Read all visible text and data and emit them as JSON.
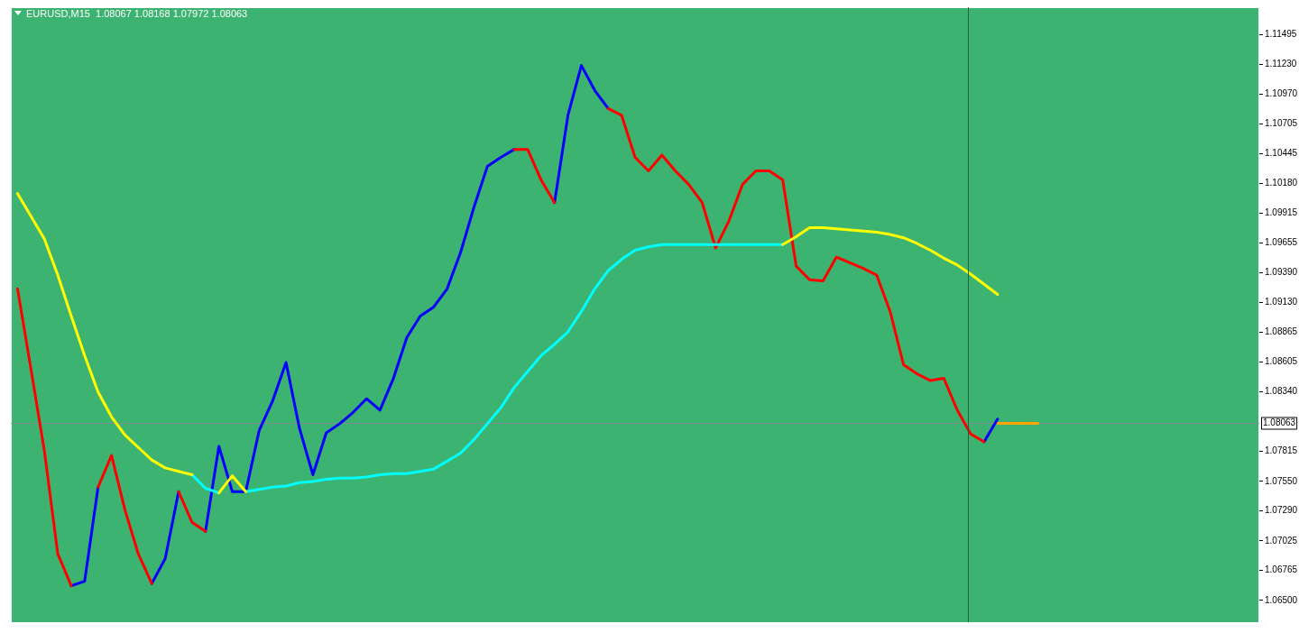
{
  "chart_data": {
    "type": "line",
    "title": "EURUSD,M15  1.08067 1.08168 1.07972 1.08063",
    "categories": [
      null,
      null,
      null,
      null,
      null,
      null,
      null,
      null,
      null,
      null,
      null,
      null,
      null,
      null,
      null,
      null,
      null,
      null,
      null,
      null,
      null,
      null,
      null,
      null,
      null,
      null,
      null,
      null,
      null,
      null,
      null,
      null,
      null,
      null,
      null,
      null,
      null,
      null,
      null,
      null,
      null,
      null,
      null,
      null,
      null,
      null,
      null,
      null,
      null,
      null,
      null,
      null,
      null,
      null,
      null,
      null,
      null,
      null,
      null,
      null,
      null,
      null,
      null,
      null,
      null,
      null,
      null,
      null,
      null,
      null,
      null,
      null,
      null,
      null,
      null,
      null,
      null,
      null,
      null,
      null,
      null,
      null,
      null,
      null,
      null,
      null,
      null,
      null,
      null,
      null,
      null,
      null,
      null
    ],
    "ylim": [
      1.06309,
      1.11734
    ],
    "tick_labels": "y",
    "grid": false,
    "legend": false,
    "marker": "none",
    "line_style": "solid",
    "yticks": [
      {
        "value": 1.11495,
        "label": "1.11495"
      },
      {
        "value": 1.1123,
        "label": "1.11230"
      },
      {
        "value": 1.1097,
        "label": "1.10970"
      },
      {
        "value": 1.10705,
        "label": "1.10705"
      },
      {
        "value": 1.10445,
        "label": "1.10445"
      },
      {
        "value": 1.1018,
        "label": "1.10180"
      },
      {
        "value": 1.09915,
        "label": "1.09915"
      },
      {
        "value": 1.09655,
        "label": "1.09655"
      },
      {
        "value": 1.0939,
        "label": "1.09390"
      },
      {
        "value": 1.0913,
        "label": "1.09130"
      },
      {
        "value": 1.08865,
        "label": "1.08865"
      },
      {
        "value": 1.08605,
        "label": "1.08605"
      },
      {
        "value": 1.0834,
        "label": "1.08340"
      },
      {
        "value": 1.07815,
        "label": "1.07815"
      },
      {
        "value": 1.0755,
        "label": "1.07550"
      },
      {
        "value": 1.0729,
        "label": "1.07290"
      },
      {
        "value": 1.07025,
        "label": "1.07025"
      },
      {
        "value": 1.06765,
        "label": "1.06765"
      },
      {
        "value": 1.065,
        "label": "1.06500"
      }
    ],
    "ref_lines": [
      {
        "axis": "y",
        "value": 1.08063,
        "label": "1.08063",
        "color": "#7f8f8f"
      }
    ],
    "series": [
      {
        "color": "#ffff00",
        "values": [
          1.1009,
          1.0989,
          1.0969,
          1.0937,
          1.0901,
          1.0866,
          1.0834,
          1.0812,
          1.0796,
          1.0785,
          1.0774,
          1.0767,
          1.0764,
          1.0761,
          null,
          1.0745,
          1.076,
          1.0746,
          null,
          null,
          null,
          null,
          null,
          null,
          null,
          null,
          null,
          null,
          null,
          null,
          null,
          null,
          null,
          null,
          null,
          null,
          null,
          null,
          null,
          null,
          null,
          null,
          null,
          null,
          null,
          null,
          null,
          null,
          null,
          null,
          null,
          null,
          null,
          null,
          null,
          null,
          null,
          1.0964,
          1.0971,
          1.0979,
          1.0979,
          1.0978,
          1.0977,
          1.0976,
          1.0975,
          1.0973,
          1.097,
          1.0965,
          1.0959,
          1.0952,
          1.0946,
          1.0938,
          1.0929,
          1.092,
          null,
          null,
          null,
          null,
          null,
          null,
          null,
          null,
          null,
          null,
          null,
          null,
          null,
          null,
          null,
          null,
          null,
          null,
          null
        ]
      },
      {
        "color": "#00ffff",
        "values": [
          null,
          null,
          null,
          null,
          null,
          null,
          null,
          null,
          null,
          null,
          null,
          null,
          null,
          1.0761,
          1.0749,
          1.0745,
          null,
          1.0746,
          1.0748,
          1.075,
          1.0751,
          1.0754,
          1.0755,
          1.0757,
          1.0758,
          1.0758,
          1.0759,
          1.0761,
          1.0762,
          1.0762,
          1.0764,
          1.0766,
          1.0773,
          1.078,
          1.0792,
          1.0806,
          1.082,
          1.0838,
          1.0852,
          1.0866,
          1.0876,
          1.0887,
          1.0905,
          1.0925,
          1.0941,
          1.0951,
          1.0959,
          1.0962,
          1.0964,
          1.0964,
          1.0964,
          1.0964,
          1.0964,
          1.0964,
          1.0964,
          1.0964,
          1.0964,
          1.0964,
          null,
          null,
          null,
          null,
          null,
          null,
          null,
          null,
          null,
          null,
          null,
          null,
          null,
          null,
          null,
          null,
          null,
          null,
          null,
          null,
          null,
          null,
          null,
          null,
          null,
          null,
          null,
          null,
          null,
          null,
          null,
          null,
          null,
          null,
          null
        ]
      },
      {
        "color": "#ff0000",
        "values": [
          1.0925,
          1.0854,
          1.0782,
          1.0691,
          1.0663,
          null,
          1.075,
          1.0778,
          1.073,
          1.0691,
          1.0665,
          null,
          1.0746,
          1.0719,
          1.0711,
          null,
          null,
          null,
          null,
          null,
          null,
          null,
          null,
          null,
          null,
          null,
          null,
          null,
          null,
          null,
          null,
          null,
          null,
          null,
          null,
          null,
          null,
          1.1048,
          1.1048,
          1.1021,
          1.1001,
          null,
          null,
          null,
          1.1084,
          1.1078,
          1.1041,
          1.1029,
          1.1043,
          1.1029,
          1.1017,
          1.1001,
          1.0961,
          1.0985,
          1.1017,
          1.1029,
          1.1029,
          1.1021,
          1.0945,
          1.0933,
          1.0932,
          1.0953,
          1.0948,
          1.0943,
          1.0937,
          1.0905,
          1.0858,
          1.085,
          1.0844,
          1.0846,
          1.0818,
          1.0797,
          1.079,
          null,
          null,
          null,
          null,
          null,
          null,
          null,
          null,
          null,
          null,
          null,
          null,
          null,
          null,
          null,
          null,
          null,
          null,
          null,
          null
        ]
      },
      {
        "color": "#0000ff",
        "values": [
          null,
          null,
          null,
          null,
          1.0663,
          1.0667,
          1.075,
          null,
          null,
          null,
          1.0665,
          1.0687,
          1.0746,
          null,
          1.0711,
          1.0786,
          1.0746,
          1.0746,
          1.08,
          1.0826,
          1.086,
          1.0802,
          1.0761,
          1.0798,
          1.0806,
          1.0816,
          1.0828,
          1.0818,
          1.0846,
          1.0882,
          1.0901,
          1.0909,
          1.0925,
          1.0957,
          1.0997,
          1.1033,
          1.1041,
          1.1048,
          null,
          null,
          1.1001,
          1.1078,
          1.1122,
          1.11,
          1.1084,
          null,
          null,
          null,
          null,
          null,
          null,
          null,
          null,
          null,
          null,
          null,
          null,
          null,
          null,
          null,
          null,
          null,
          null,
          null,
          null,
          null,
          null,
          null,
          null,
          null,
          null,
          null,
          1.079,
          1.081,
          null,
          null,
          null,
          null,
          null,
          null,
          null,
          null,
          null,
          null,
          null,
          null,
          null,
          null,
          null,
          null,
          null,
          null,
          null
        ]
      },
      {
        "color": "#ffa500",
        "values": [
          null,
          null,
          null,
          null,
          null,
          null,
          null,
          null,
          null,
          null,
          null,
          null,
          null,
          null,
          null,
          null,
          null,
          null,
          null,
          null,
          null,
          null,
          null,
          null,
          null,
          null,
          null,
          null,
          null,
          null,
          null,
          null,
          null,
          null,
          null,
          null,
          null,
          null,
          null,
          null,
          null,
          null,
          null,
          null,
          null,
          null,
          null,
          null,
          null,
          null,
          null,
          null,
          null,
          null,
          null,
          null,
          null,
          null,
          null,
          null,
          null,
          null,
          null,
          null,
          null,
          null,
          null,
          null,
          null,
          null,
          null,
          null,
          null,
          1.08063,
          1.08063,
          1.08063,
          1.08063,
          null,
          null,
          null,
          null,
          null,
          null,
          null,
          null,
          null,
          null,
          null,
          null,
          null,
          null,
          null,
          null
        ]
      }
    ]
  }
}
